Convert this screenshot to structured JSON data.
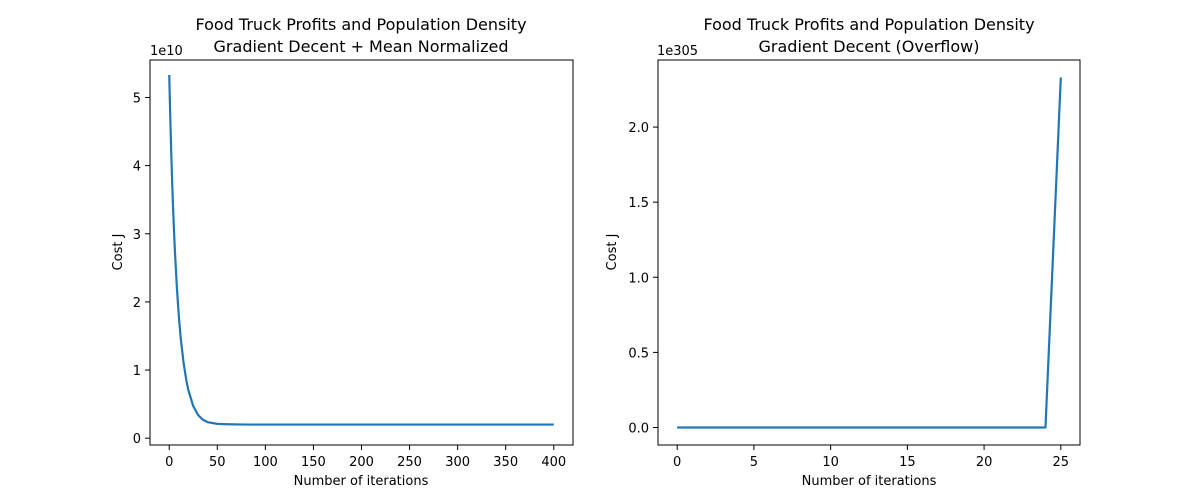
{
  "chart_data": [
    {
      "type": "line",
      "title_line1": "Food Truck Profits and Population Density",
      "title_line2": "Gradient Decent + Mean Normalized",
      "xlabel": "Number of iterations",
      "ylabel": "Cost J",
      "y_offset_label": "1e10",
      "xlim": [
        -20,
        420
      ],
      "ylim": [
        -0.1,
        5.55
      ],
      "x_ticks": [
        0,
        50,
        100,
        150,
        200,
        250,
        300,
        350,
        400
      ],
      "x_tick_labels": [
        "0",
        "50",
        "100",
        "150",
        "200",
        "250",
        "300",
        "350",
        "400"
      ],
      "y_ticks": [
        0,
        1,
        2,
        3,
        4,
        5
      ],
      "y_tick_labels": [
        "0",
        "1",
        "2",
        "3",
        "4",
        "5"
      ],
      "line_color": "#1f77b4",
      "grid": false,
      "series": [
        {
          "x": [
            0,
            1,
            2,
            3,
            4,
            5,
            6,
            8,
            10,
            12,
            15,
            18,
            20,
            25,
            30,
            35,
            40,
            50,
            60,
            80,
            100,
            150,
            200,
            250,
            300,
            350,
            400
          ],
          "values": [
            5.33,
            4.75,
            4.24,
            3.78,
            3.38,
            3.03,
            2.72,
            2.2,
            1.79,
            1.46,
            1.1,
            0.83,
            0.7,
            0.47,
            0.34,
            0.27,
            0.235,
            0.21,
            0.205,
            0.2,
            0.2,
            0.2,
            0.2,
            0.2,
            0.2,
            0.2,
            0.2
          ]
        }
      ]
    },
    {
      "type": "line",
      "title_line1": "Food Truck Profits and Population Density",
      "title_line2": "Gradient Decent (Overflow)",
      "xlabel": "Number of iterations",
      "ylabel": "Cost J",
      "y_offset_label": "1e305",
      "xlim": [
        -1.25,
        26.25
      ],
      "ylim": [
        -0.1165,
        2.4465
      ],
      "x_ticks": [
        0,
        5,
        10,
        15,
        20,
        25
      ],
      "x_tick_labels": [
        "0",
        "5",
        "10",
        "15",
        "20",
        "25"
      ],
      "y_ticks": [
        0,
        0.5,
        1.0,
        1.5,
        2.0
      ],
      "y_tick_labels": [
        "0.0",
        "0.5",
        "1.0",
        "1.5",
        "2.0"
      ],
      "line_color": "#1f77b4",
      "grid": false,
      "series": [
        {
          "x": [
            0,
            1,
            2,
            3,
            4,
            5,
            6,
            7,
            8,
            9,
            10,
            11,
            12,
            13,
            14,
            15,
            16,
            17,
            18,
            19,
            20,
            21,
            22,
            23,
            24,
            25
          ],
          "values": [
            0,
            0,
            0,
            0,
            0,
            0,
            0,
            0,
            0,
            0,
            0,
            0,
            0,
            0,
            0,
            0,
            0,
            0,
            0,
            0,
            0,
            0,
            0,
            0,
            0,
            2.33
          ]
        }
      ]
    }
  ]
}
